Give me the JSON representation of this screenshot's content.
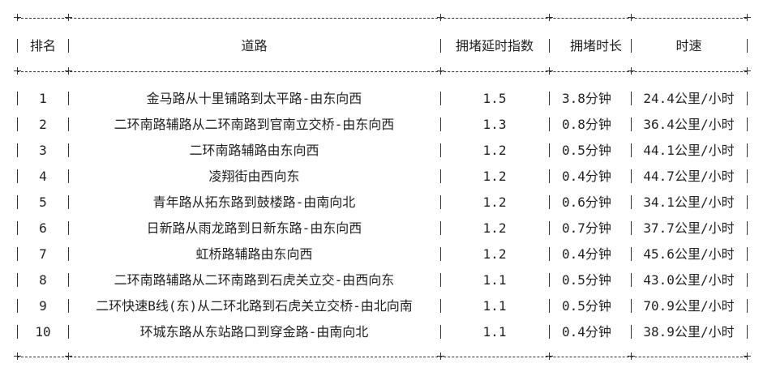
{
  "table": {
    "headers": [
      "排名",
      "道路",
      "拥堵延时指数",
      "拥堵时长",
      "时速"
    ],
    "rows": [
      {
        "rank": "1",
        "road": "金马路从十里铺路到太平路-由东向西",
        "index": "1.5",
        "duration": "3.8分钟",
        "speed": "24.4公里/小时"
      },
      {
        "rank": "2",
        "road": "二环南路辅路从二环南路到官南立交桥-由东向西",
        "index": "1.3",
        "duration": "0.8分钟",
        "speed": "36.4公里/小时"
      },
      {
        "rank": "3",
        "road": "二环南路辅路由东向西",
        "index": "1.2",
        "duration": "0.5分钟",
        "speed": "44.1公里/小时"
      },
      {
        "rank": "4",
        "road": "凌翔街由西向东",
        "index": "1.2",
        "duration": "0.4分钟",
        "speed": "44.7公里/小时"
      },
      {
        "rank": "5",
        "road": "青年路从拓东路到鼓楼路-由南向北",
        "index": "1.2",
        "duration": "0.6分钟",
        "speed": "34.1公里/小时"
      },
      {
        "rank": "6",
        "road": "日新路从雨龙路到日新东路-由东向西",
        "index": "1.2",
        "duration": "0.7分钟",
        "speed": "37.7公里/小时"
      },
      {
        "rank": "7",
        "road": "虹桥路辅路由东向西",
        "index": "1.2",
        "duration": "0.4分钟",
        "speed": "45.6公里/小时"
      },
      {
        "rank": "8",
        "road": "二环南路辅路从二环南路到石虎关立交-由西向东",
        "index": "1.1",
        "duration": "0.5分钟",
        "speed": "43.0公里/小时"
      },
      {
        "rank": "9",
        "road": "二环快速B线(东)从二环北路到石虎关立交桥-由北向南",
        "index": "1.1",
        "duration": "0.5分钟",
        "speed": "70.9公里/小时"
      },
      {
        "rank": "10",
        "road": "环城东路从东站路口到穿金路-由南向北",
        "index": "1.1",
        "duration": "0.4分钟",
        "speed": "38.9公里/小时"
      }
    ]
  }
}
